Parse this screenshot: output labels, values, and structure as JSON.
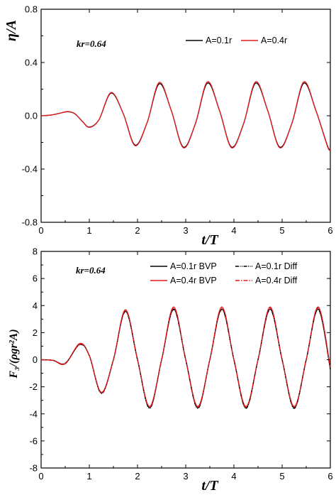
{
  "chart_data": [
    {
      "type": "line",
      "annotation": "kr=0.64",
      "xlabel": "t/T",
      "ylabel": "η/A",
      "xlim": [
        0,
        6
      ],
      "ylim": [
        -0.8,
        0.8
      ],
      "xticks": [
        0,
        1,
        2,
        3,
        4,
        5,
        6
      ],
      "yticks": [
        -0.8,
        -0.4,
        0.0,
        0.4,
        0.8
      ],
      "ytick_labels": [
        "-0.8",
        "-0.4",
        "0.0",
        "0.4",
        "0.8"
      ],
      "grid": false,
      "legend_position": "top-right",
      "series": [
        {
          "name": "A=0.1r",
          "color": "#000000",
          "dash": "solid",
          "x": [
            0,
            0.2,
            0.4,
            0.55,
            0.7,
            0.85,
            1.0,
            1.2,
            1.45,
            1.7,
            1.95,
            2.2,
            2.45,
            2.7,
            2.95,
            3.2,
            3.45,
            3.7,
            3.95,
            4.2,
            4.45,
            4.7,
            4.95,
            5.2,
            5.45,
            5.7,
            5.95,
            6.0
          ],
          "y": [
            0,
            0.005,
            0.02,
            0.03,
            0.015,
            -0.04,
            -0.085,
            -0.03,
            0.17,
            0.02,
            -0.22,
            -0.05,
            0.24,
            0.04,
            -0.235,
            -0.06,
            0.245,
            0.04,
            -0.235,
            -0.06,
            0.245,
            0.04,
            -0.235,
            -0.06,
            0.245,
            0.04,
            -0.235,
            -0.23
          ]
        },
        {
          "name": "A=0.4r",
          "color": "#e8191c",
          "dash": "solid",
          "x": [
            0,
            0.2,
            0.4,
            0.55,
            0.7,
            0.85,
            1.0,
            1.2,
            1.45,
            1.7,
            1.95,
            2.2,
            2.45,
            2.7,
            2.95,
            3.2,
            3.45,
            3.7,
            3.95,
            4.2,
            4.45,
            4.7,
            4.95,
            5.2,
            5.45,
            5.7,
            5.95,
            6.0
          ],
          "y": [
            0,
            0.005,
            0.02,
            0.032,
            0.016,
            -0.04,
            -0.087,
            -0.03,
            0.175,
            0.02,
            -0.225,
            -0.05,
            0.25,
            0.04,
            -0.24,
            -0.06,
            0.255,
            0.04,
            -0.24,
            -0.06,
            0.255,
            0.04,
            -0.24,
            -0.06,
            0.255,
            0.04,
            -0.24,
            -0.235
          ]
        }
      ]
    },
    {
      "type": "line",
      "annotation": "kr=0.64",
      "xlabel": "t/T",
      "ylabel": "F₃/(ρgr²A)",
      "xlim": [
        0,
        6
      ],
      "ylim": [
        -8,
        8
      ],
      "xticks": [
        0,
        1,
        2,
        3,
        4,
        5,
        6
      ],
      "yticks": [
        -8,
        -6,
        -4,
        -2,
        0,
        2,
        4,
        6,
        8
      ],
      "ytick_labels": [
        "-8",
        "-6",
        "-4",
        "-2",
        "0",
        "2",
        "4",
        "6",
        "8"
      ],
      "grid": false,
      "legend_position": "top-right",
      "series": [
        {
          "name": "A=0.1r BVP",
          "color": "#000000",
          "dash": "solid",
          "x": [
            0,
            0.25,
            0.5,
            0.8,
            1.0,
            1.25,
            1.5,
            1.75,
            2.0,
            2.25,
            2.5,
            2.75,
            3.0,
            3.25,
            3.5,
            3.75,
            4.0,
            4.25,
            4.5,
            4.75,
            5.0,
            5.25,
            5.5,
            5.75,
            6.0
          ],
          "y": [
            0,
            -0.05,
            -0.3,
            1.15,
            0.3,
            -2.45,
            0.0,
            3.6,
            0.0,
            -3.55,
            0.0,
            3.75,
            0.0,
            -3.55,
            0.0,
            3.75,
            0.0,
            -3.55,
            0.0,
            3.75,
            0.0,
            -3.55,
            0.0,
            3.75,
            -0.7
          ]
        },
        {
          "name": "A=0.4r BVP",
          "color": "#e8191c",
          "dash": "solid",
          "x": [
            0,
            0.25,
            0.5,
            0.8,
            1.0,
            1.25,
            1.5,
            1.75,
            2.0,
            2.25,
            2.5,
            2.75,
            3.0,
            3.25,
            3.5,
            3.75,
            4.0,
            4.25,
            4.5,
            4.75,
            5.0,
            5.25,
            5.5,
            5.75,
            6.0
          ],
          "y": [
            0,
            -0.05,
            -0.3,
            1.2,
            0.3,
            -2.4,
            0.0,
            3.7,
            0.0,
            -3.45,
            0.0,
            3.9,
            0.0,
            -3.45,
            0.0,
            3.9,
            0.0,
            -3.45,
            0.0,
            3.9,
            0.0,
            -3.45,
            0.0,
            3.9,
            -0.6
          ]
        },
        {
          "name": "A=0.1r Diff",
          "color": "#000000",
          "dash": "dash-dot-dot",
          "x": [
            0,
            0.25,
            0.5,
            0.8,
            1.0,
            1.25,
            1.5,
            1.75,
            2.0,
            2.25,
            2.5,
            2.75,
            3.0,
            3.25,
            3.5,
            3.75,
            4.0,
            4.25,
            4.5,
            4.75,
            5.0,
            5.25,
            5.5,
            5.75,
            6.0
          ],
          "y": [
            0,
            -0.05,
            -0.25,
            1.1,
            0.3,
            -2.5,
            0.0,
            3.55,
            0.0,
            -3.6,
            0.0,
            3.7,
            0.0,
            -3.6,
            0.0,
            3.7,
            0.0,
            -3.6,
            0.0,
            3.7,
            0.0,
            -3.6,
            0.0,
            3.7,
            -0.7
          ]
        },
        {
          "name": "A=0.4r Diff",
          "color": "#e8191c",
          "dash": "dash-dot",
          "x": [
            0,
            0.25,
            0.5,
            0.8,
            1.0,
            1.25,
            1.5,
            1.75,
            2.0,
            2.25,
            2.5,
            2.75,
            3.0,
            3.25,
            3.5,
            3.75,
            4.0,
            4.25,
            4.5,
            4.75,
            5.0,
            5.25,
            5.5,
            5.75,
            6.0
          ],
          "y": [
            0,
            -0.05,
            -0.25,
            1.15,
            0.3,
            -2.45,
            0.0,
            3.65,
            0.0,
            -3.5,
            0.0,
            3.85,
            0.0,
            -3.5,
            0.0,
            3.85,
            0.0,
            -3.5,
            0.0,
            3.85,
            0.0,
            -3.5,
            0.0,
            3.85,
            -0.6
          ]
        }
      ]
    }
  ]
}
